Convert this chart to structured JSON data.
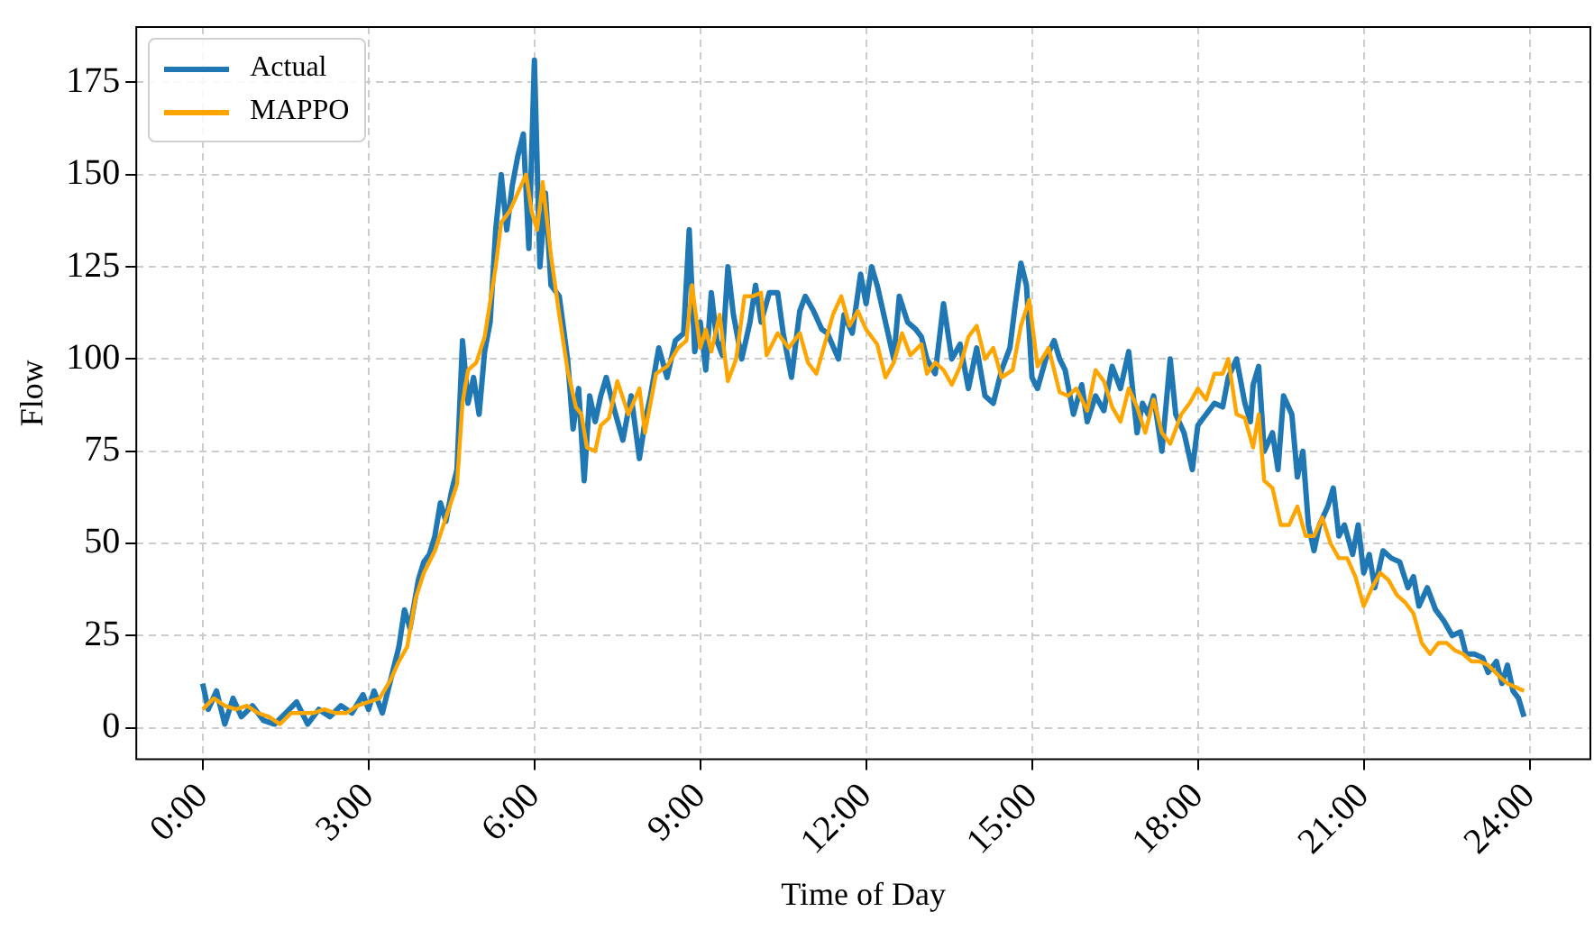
{
  "chart_data": {
    "type": "line",
    "xlabel": "Time of Day",
    "ylabel": "Flow",
    "xlim": [
      -1.2,
      25.1
    ],
    "ylim": [
      -8.5,
      190
    ],
    "xticks": [
      {
        "value": 0,
        "label": "0:00"
      },
      {
        "value": 3,
        "label": "3:00"
      },
      {
        "value": 6,
        "label": "6:00"
      },
      {
        "value": 9,
        "label": "9:00"
      },
      {
        "value": 12,
        "label": "12:00"
      },
      {
        "value": 15,
        "label": "15:00"
      },
      {
        "value": 18,
        "label": "18:00"
      },
      {
        "value": 21,
        "label": "21:00"
      },
      {
        "value": 24,
        "label": "24:00"
      }
    ],
    "yticks": [
      0,
      25,
      50,
      75,
      100,
      125,
      150,
      175
    ],
    "grid": true,
    "legend": "top left",
    "line_style": "solid",
    "marker": "none",
    "series": [
      {
        "name": "Actual",
        "color": "#1f77b4",
        "x": [
          0,
          0.1,
          0.25,
          0.4,
          0.55,
          0.7,
          0.9,
          1.1,
          1.3,
          1.5,
          1.7,
          1.9,
          2.1,
          2.3,
          2.5,
          2.7,
          2.9,
          3.0,
          3.1,
          3.25,
          3.4,
          3.55,
          3.65,
          3.75,
          3.9,
          4.0,
          4.1,
          4.2,
          4.3,
          4.4,
          4.5,
          4.6,
          4.7,
          4.8,
          4.9,
          5.0,
          5.1,
          5.2,
          5.3,
          5.4,
          5.5,
          5.6,
          5.7,
          5.8,
          5.9,
          6.0,
          6.1,
          6.2,
          6.3,
          6.45,
          6.6,
          6.7,
          6.8,
          6.9,
          7.0,
          7.1,
          7.2,
          7.3,
          7.45,
          7.6,
          7.75,
          7.9,
          8.0,
          8.1,
          8.25,
          8.4,
          8.55,
          8.7,
          8.8,
          8.9,
          9.0,
          9.1,
          9.2,
          9.3,
          9.4,
          9.5,
          9.6,
          9.75,
          9.9,
          10.0,
          10.1,
          10.25,
          10.4,
          10.5,
          10.65,
          10.8,
          10.9,
          11.05,
          11.2,
          11.3,
          11.5,
          11.6,
          11.75,
          11.9,
          12.0,
          12.1,
          12.2,
          12.35,
          12.5,
          12.6,
          12.75,
          12.9,
          13.0,
          13.1,
          13.25,
          13.4,
          13.55,
          13.7,
          13.85,
          14.0,
          14.15,
          14.3,
          14.45,
          14.6,
          14.7,
          14.8,
          14.9,
          15.0,
          15.1,
          15.25,
          15.4,
          15.5,
          15.6,
          15.75,
          15.9,
          16.0,
          16.15,
          16.3,
          16.45,
          16.6,
          16.75,
          16.9,
          17.0,
          17.1,
          17.2,
          17.35,
          17.5,
          17.6,
          17.75,
          17.9,
          18.0,
          18.15,
          18.3,
          18.45,
          18.55,
          18.7,
          18.85,
          18.95,
          19.0,
          19.1,
          19.2,
          19.35,
          19.45,
          19.55,
          19.7,
          19.8,
          19.9,
          20.0,
          20.1,
          20.2,
          20.35,
          20.45,
          20.55,
          20.65,
          20.8,
          20.9,
          21.0,
          21.1,
          21.2,
          21.35,
          21.5,
          21.65,
          21.8,
          21.9,
          22.0,
          22.15,
          22.3,
          22.45,
          22.6,
          22.75,
          22.85,
          23.0,
          23.15,
          23.25,
          23.4,
          23.5,
          23.6,
          23.7,
          23.8,
          23.9
        ],
        "values": [
          12,
          5,
          10,
          1,
          8,
          3,
          6,
          2,
          1,
          4,
          7,
          1,
          5,
          3,
          6,
          4,
          9,
          5,
          10,
          4,
          13,
          22,
          32,
          27,
          40,
          45,
          47,
          52,
          61,
          56,
          64,
          70,
          105,
          88,
          95,
          85,
          102,
          110,
          135,
          150,
          135,
          147,
          155,
          161,
          130,
          181,
          125,
          145,
          120,
          117,
          100,
          81,
          92,
          67,
          90,
          83,
          90,
          95,
          86,
          78,
          90,
          73,
          83,
          90,
          103,
          95,
          105,
          107,
          135,
          102,
          110,
          97,
          118,
          105,
          101,
          125,
          112,
          100,
          110,
          120,
          110,
          118,
          118,
          107,
          95,
          113,
          117,
          113,
          108,
          107,
          100,
          112,
          107,
          123,
          115,
          125,
          120,
          110,
          100,
          117,
          110,
          108,
          106,
          100,
          96,
          115,
          100,
          104,
          92,
          103,
          90,
          88,
          97,
          103,
          115,
          126,
          120,
          95,
          92,
          100,
          105,
          100,
          97,
          85,
          93,
          83,
          90,
          86,
          98,
          92,
          102,
          80,
          88,
          85,
          90,
          75,
          100,
          85,
          80,
          70,
          82,
          85,
          88,
          87,
          95,
          100,
          88,
          83,
          93,
          98,
          75,
          80,
          70,
          90,
          85,
          68,
          75,
          55,
          48,
          55,
          60,
          65,
          52,
          55,
          47,
          55,
          42,
          47,
          38,
          48,
          46,
          45,
          38,
          41,
          33,
          38,
          32,
          29,
          25,
          26,
          20,
          20,
          19,
          15,
          18,
          12,
          17,
          10,
          8,
          3
        ]
      },
      {
        "name": "MAPPO",
        "color": "#ffa500",
        "x": [
          0,
          0.2,
          0.4,
          0.6,
          0.8,
          1.0,
          1.2,
          1.4,
          1.6,
          1.8,
          2.0,
          2.2,
          2.4,
          2.6,
          2.8,
          3.0,
          3.2,
          3.4,
          3.55,
          3.7,
          3.85,
          4.0,
          4.2,
          4.4,
          4.6,
          4.7,
          4.8,
          4.95,
          5.1,
          5.3,
          5.4,
          5.55,
          5.7,
          5.85,
          5.95,
          6.05,
          6.15,
          6.3,
          6.45,
          6.6,
          6.75,
          6.85,
          6.95,
          7.1,
          7.2,
          7.35,
          7.5,
          7.7,
          7.9,
          8.0,
          8.2,
          8.4,
          8.6,
          8.75,
          8.85,
          9.0,
          9.1,
          9.2,
          9.35,
          9.5,
          9.65,
          9.8,
          9.95,
          10.1,
          10.2,
          10.4,
          10.6,
          10.8,
          10.95,
          11.1,
          11.25,
          11.4,
          11.55,
          11.7,
          11.85,
          12.0,
          12.2,
          12.35,
          12.5,
          12.65,
          12.8,
          13.0,
          13.1,
          13.25,
          13.4,
          13.55,
          13.7,
          13.85,
          14.0,
          14.15,
          14.3,
          14.45,
          14.65,
          14.8,
          14.95,
          15.1,
          15.3,
          15.5,
          15.65,
          15.8,
          16.0,
          16.15,
          16.3,
          16.45,
          16.6,
          16.75,
          16.9,
          17.05,
          17.2,
          17.35,
          17.5,
          17.7,
          17.85,
          18.0,
          18.15,
          18.3,
          18.45,
          18.55,
          18.7,
          18.85,
          19.0,
          19.1,
          19.2,
          19.35,
          19.5,
          19.65,
          19.8,
          19.95,
          20.1,
          20.25,
          20.4,
          20.55,
          20.7,
          20.85,
          21.0,
          21.15,
          21.3,
          21.45,
          21.6,
          21.75,
          21.9,
          22.05,
          22.2,
          22.35,
          22.5,
          22.65,
          22.8,
          22.95,
          23.1,
          23.25,
          23.45,
          23.6,
          23.75,
          23.9
        ],
        "values": [
          5,
          8,
          6,
          5,
          6,
          4,
          3,
          1,
          4,
          4,
          4,
          5,
          4,
          4,
          6,
          7,
          8,
          13,
          18,
          22,
          35,
          42,
          48,
          57,
          66,
          88,
          97,
          99,
          106,
          125,
          137,
          140,
          145,
          150,
          140,
          135,
          148,
          128,
          112,
          97,
          87,
          85,
          76,
          75,
          82,
          84,
          94,
          85,
          92,
          80,
          96,
          98,
          103,
          105,
          120,
          103,
          108,
          102,
          112,
          94,
          100,
          117,
          117,
          118,
          101,
          107,
          103,
          107,
          99,
          96,
          104,
          112,
          117,
          109,
          113,
          108,
          104,
          95,
          99,
          107,
          101,
          104,
          96,
          99,
          97,
          93,
          98,
          106,
          109,
          100,
          103,
          95,
          97,
          109,
          116,
          98,
          103,
          91,
          90,
          92,
          86,
          97,
          94,
          87,
          83,
          92,
          87,
          80,
          89,
          80,
          77,
          85,
          88,
          92,
          89,
          96,
          96,
          100,
          85,
          84,
          76,
          85,
          67,
          65,
          55,
          55,
          60,
          52,
          52,
          57,
          50,
          46,
          46,
          41,
          33,
          38,
          42,
          40,
          36,
          34,
          31,
          23,
          20,
          23,
          23,
          21,
          20,
          18,
          18,
          17,
          14,
          12,
          11,
          10
        ]
      }
    ]
  }
}
